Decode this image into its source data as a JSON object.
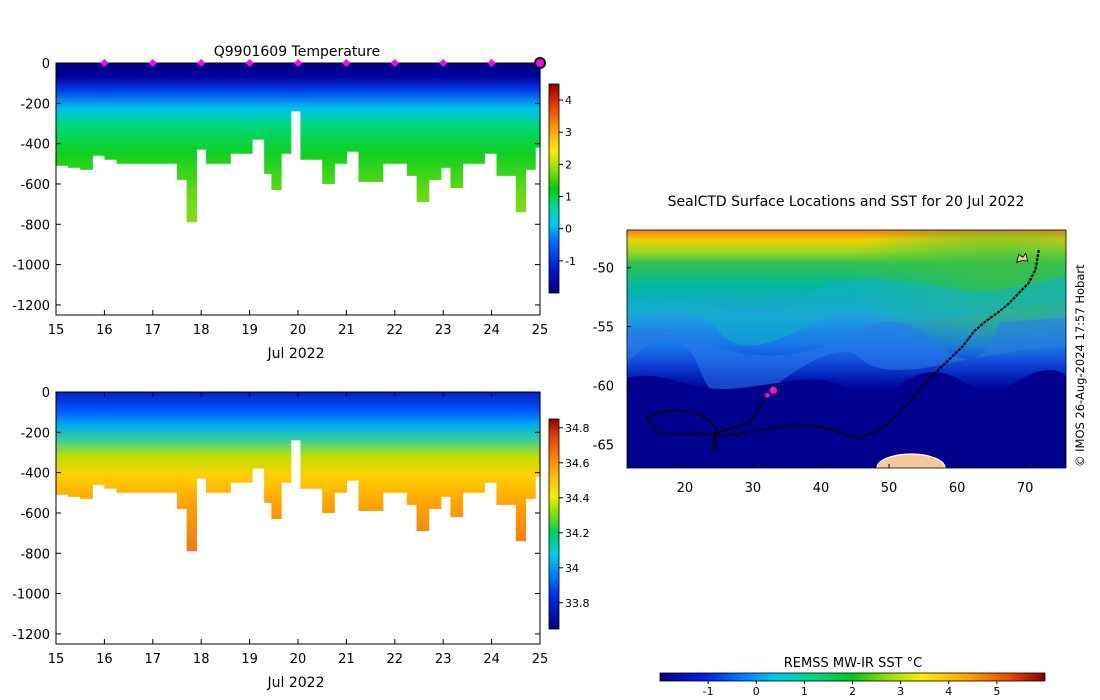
{
  "colors": {
    "panel_bg": "#ffffff",
    "ocean_deep": "#00008f",
    "land": "#f6c79b",
    "marker": "#ff00ff",
    "track": "#000000"
  },
  "chart_data": [
    {
      "id": "temperature-section",
      "type": "heatmap",
      "title": "Q9901609  Temperature",
      "xlabel": "Jul 2022",
      "ylabel": "",
      "x_range": [
        15,
        25
      ],
      "y_range": [
        -1250,
        0
      ],
      "x_ticks": [
        15,
        16,
        17,
        18,
        19,
        20,
        21,
        22,
        23,
        24,
        25
      ],
      "y_ticks": [
        0,
        -200,
        -400,
        -600,
        -800,
        -1000,
        -1200
      ],
      "colorbar": {
        "min": -2,
        "max": 4.5,
        "ticks": [
          -1,
          0,
          1,
          2,
          3,
          4
        ]
      },
      "surface_markers_x": [
        16,
        17,
        18,
        19,
        20,
        21,
        22,
        23,
        24
      ],
      "current_marker_x": 25,
      "profiles": [
        {
          "t": 15.0,
          "depth": 510
        },
        {
          "t": 15.25,
          "depth": 520
        },
        {
          "t": 15.5,
          "depth": 530
        },
        {
          "t": 15.75,
          "depth": 460
        },
        {
          "t": 16.0,
          "depth": 480
        },
        {
          "t": 16.25,
          "depth": 500
        },
        {
          "t": 16.5,
          "depth": 500
        },
        {
          "t": 16.75,
          "depth": 500
        },
        {
          "t": 17.0,
          "depth": 500
        },
        {
          "t": 17.25,
          "depth": 500
        },
        {
          "t": 17.5,
          "depth": 580
        },
        {
          "t": 17.7,
          "depth": 790
        },
        {
          "t": 17.9,
          "depth": 430
        },
        {
          "t": 18.1,
          "depth": 500
        },
        {
          "t": 18.35,
          "depth": 500
        },
        {
          "t": 18.6,
          "depth": 450
        },
        {
          "t": 18.85,
          "depth": 450
        },
        {
          "t": 19.05,
          "depth": 380
        },
        {
          "t": 19.3,
          "depth": 550
        },
        {
          "t": 19.45,
          "depth": 630
        },
        {
          "t": 19.65,
          "depth": 450
        },
        {
          "t": 19.85,
          "depth": 240
        },
        {
          "t": 20.05,
          "depth": 480
        },
        {
          "t": 20.3,
          "depth": 480
        },
        {
          "t": 20.5,
          "depth": 600
        },
        {
          "t": 20.75,
          "depth": 500
        },
        {
          "t": 21.0,
          "depth": 440
        },
        {
          "t": 21.25,
          "depth": 590
        },
        {
          "t": 21.5,
          "depth": 590
        },
        {
          "t": 21.75,
          "depth": 500
        },
        {
          "t": 22.0,
          "depth": 500
        },
        {
          "t": 22.25,
          "depth": 560
        },
        {
          "t": 22.45,
          "depth": 690
        },
        {
          "t": 22.7,
          "depth": 580
        },
        {
          "t": 22.95,
          "depth": 520
        },
        {
          "t": 23.15,
          "depth": 620
        },
        {
          "t": 23.4,
          "depth": 500
        },
        {
          "t": 23.65,
          "depth": 500
        },
        {
          "t": 23.85,
          "depth": 450
        },
        {
          "t": 24.1,
          "depth": 560
        },
        {
          "t": 24.3,
          "depth": 560
        },
        {
          "t": 24.5,
          "depth": 740
        },
        {
          "t": 24.7,
          "depth": 530
        },
        {
          "t": 24.9,
          "depth": 420
        }
      ]
    },
    {
      "id": "salinity-section",
      "type": "heatmap",
      "title": "",
      "xlabel": "Jul 2022",
      "ylabel": "",
      "x_range": [
        15,
        25
      ],
      "y_range": [
        -1250,
        0
      ],
      "x_ticks": [
        15,
        16,
        17,
        18,
        19,
        20,
        21,
        22,
        23,
        24,
        25
      ],
      "y_ticks": [
        0,
        -200,
        -400,
        -600,
        -800,
        -1000,
        -1200
      ],
      "colorbar": {
        "min": 33.65,
        "max": 34.85,
        "ticks": [
          33.8,
          34,
          34.2,
          34.4,
          34.6,
          34.8
        ]
      }
    },
    {
      "id": "sst-map",
      "type": "heatmap",
      "title": "SealCTD Surface Locations and SST for 20 Jul 2022",
      "xlabel": "",
      "ylabel": "",
      "x_range": [
        11.5,
        76
      ],
      "y_range": [
        -67,
        -46.8
      ],
      "x_ticks": [
        20,
        30,
        40,
        50,
        60,
        70
      ],
      "y_ticks": [
        -50,
        -55,
        -60,
        -65
      ],
      "colorbar": {
        "label": "REMSS MW-IR SST °C",
        "min": -2,
        "max": 6,
        "ticks": [
          -1,
          0,
          1,
          2,
          3,
          4,
          5
        ]
      },
      "track": [
        [
          72,
          -48.5
        ],
        [
          71.8,
          -49.2
        ],
        [
          71.5,
          -50.2
        ],
        [
          70.5,
          -51.3
        ],
        [
          69,
          -52.2
        ],
        [
          67.5,
          -53.1
        ],
        [
          66,
          -53.8
        ],
        [
          64.3,
          -54.5
        ],
        [
          62.5,
          -55.4
        ],
        [
          60.8,
          -56.7
        ],
        [
          58.8,
          -57.8
        ],
        [
          56.5,
          -59.1
        ],
        [
          54,
          -60.7
        ],
        [
          51.5,
          -62.3
        ],
        [
          49,
          -63.6
        ],
        [
          47,
          -64.2
        ],
        [
          45.5,
          -64.4
        ],
        [
          44,
          -64.3
        ],
        [
          42,
          -63.8
        ],
        [
          39,
          -63.4
        ],
        [
          36,
          -63.3
        ],
        [
          33,
          -63.6
        ],
        [
          30.5,
          -63.8
        ],
        [
          28,
          -64.1
        ],
        [
          26,
          -64.3
        ],
        [
          24,
          -64.2
        ],
        [
          22,
          -64
        ],
        [
          19,
          -64.1
        ],
        [
          16,
          -64
        ],
        [
          14.5,
          -62.8
        ],
        [
          16,
          -62.3
        ],
        [
          19,
          -62.1
        ],
        [
          22,
          -62.4
        ],
        [
          23.5,
          -62.9
        ],
        [
          24.5,
          -63.6
        ],
        [
          24.5,
          -64.5
        ],
        [
          24.3,
          -65.7
        ],
        [
          24.2,
          -64.6
        ],
        [
          25,
          -63.9
        ],
        [
          27,
          -63.6
        ],
        [
          29.5,
          -63.2
        ],
        [
          31,
          -61.8
        ],
        [
          32,
          -61
        ]
      ],
      "current_location": [
        33,
        -60.4
      ],
      "islands": [
        [
          69.5,
          -49.2
        ]
      ],
      "labels": {
        "credit": "© IMOS 26-Aug-2024 17:57 Hobart"
      }
    }
  ]
}
